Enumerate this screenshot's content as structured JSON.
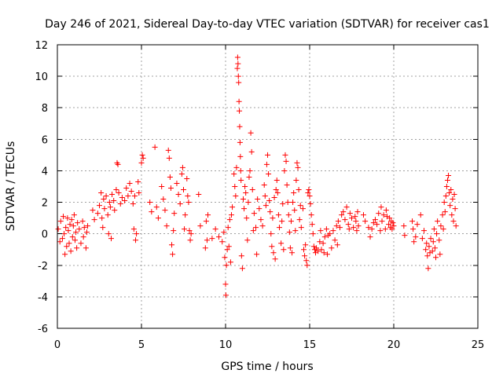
{
  "chart_data": {
    "type": "scatter",
    "title": "Day 246 of 2021, Sidereal Day-to-day VTEC variation (SDTVAR) for receiver cas1",
    "xlabel": "GPS time / hours",
    "ylabel": "SDTVAR / TECUs",
    "xlim": [
      0,
      25
    ],
    "ylim": [
      -6,
      12
    ],
    "xticks": [
      0,
      5,
      10,
      15,
      20,
      25
    ],
    "yticks": [
      -6,
      -4,
      -2,
      0,
      2,
      4,
      6,
      8,
      10,
      12
    ],
    "xtick_labels": [
      "0",
      "5",
      "10",
      "15",
      "20",
      "25"
    ],
    "ytick_labels": [
      "-6",
      "-4",
      "-2",
      "0",
      "2",
      "4",
      "6",
      "8",
      "10",
      "12"
    ],
    "grid": true,
    "marker": "+",
    "marker_color": "#ff0000",
    "series": [
      {
        "name": "SDTVAR",
        "points": [
          [
            0.05,
            0.3
          ],
          [
            0.15,
            -0.5
          ],
          [
            0.2,
            0.8
          ],
          [
            0.3,
            -0.3
          ],
          [
            0.35,
            1.1
          ],
          [
            0.4,
            0.0
          ],
          [
            0.45,
            -1.3
          ],
          [
            0.5,
            0.4
          ],
          [
            0.55,
            -0.8
          ],
          [
            0.6,
            1.0
          ],
          [
            0.65,
            0.2
          ],
          [
            0.7,
            -0.6
          ],
          [
            0.75,
            0.6
          ],
          [
            0.8,
            -1.1
          ],
          [
            0.85,
            0.9
          ],
          [
            0.9,
            -0.2
          ],
          [
            0.95,
            0.5
          ],
          [
            1.0,
            1.2
          ],
          [
            1.05,
            -0.4
          ],
          [
            1.1,
            0.1
          ],
          [
            1.15,
            -0.9
          ],
          [
            1.2,
            0.7
          ],
          [
            1.3,
            0.3
          ],
          [
            1.4,
            -0.6
          ],
          [
            1.5,
            0.8
          ],
          [
            1.55,
            -0.2
          ],
          [
            1.6,
            0.4
          ],
          [
            1.7,
            -0.9
          ],
          [
            1.75,
            0.1
          ],
          [
            1.8,
            0.5
          ],
          [
            2.1,
            1.5
          ],
          [
            2.2,
            0.9
          ],
          [
            2.4,
            1.3
          ],
          [
            2.5,
            1.8
          ],
          [
            2.6,
            2.6
          ],
          [
            2.65,
            1.0
          ],
          [
            2.7,
            0.4
          ],
          [
            2.75,
            2.2
          ],
          [
            2.8,
            1.6
          ],
          [
            2.9,
            2.4
          ],
          [
            3.0,
            1.2
          ],
          [
            3.05,
            0.0
          ],
          [
            3.1,
            2.0
          ],
          [
            3.15,
            1.7
          ],
          [
            3.2,
            -0.3
          ],
          [
            3.25,
            2.5
          ],
          [
            3.35,
            2.1
          ],
          [
            3.4,
            1.5
          ],
          [
            3.5,
            2.8
          ],
          [
            3.55,
            4.5
          ],
          [
            3.6,
            4.4
          ],
          [
            3.65,
            2.6
          ],
          [
            3.75,
            1.9
          ],
          [
            3.85,
            2.3
          ],
          [
            4.0,
            2.1
          ],
          [
            4.1,
            2.9
          ],
          [
            4.2,
            2.4
          ],
          [
            4.3,
            3.2
          ],
          [
            4.4,
            2.7
          ],
          [
            4.5,
            1.9
          ],
          [
            4.55,
            0.3
          ],
          [
            4.6,
            2.4
          ],
          [
            4.65,
            -0.4
          ],
          [
            4.7,
            0.0
          ],
          [
            4.8,
            3.3
          ],
          [
            4.85,
            2.6
          ],
          [
            5.0,
            4.5
          ],
          [
            5.05,
            5.0
          ],
          [
            5.1,
            4.8
          ],
          [
            5.5,
            2.0
          ],
          [
            5.6,
            1.4
          ],
          [
            5.8,
            5.5
          ],
          [
            5.9,
            1.7
          ],
          [
            6.0,
            1.0
          ],
          [
            6.2,
            3.0
          ],
          [
            6.3,
            2.2
          ],
          [
            6.4,
            1.5
          ],
          [
            6.5,
            0.5
          ],
          [
            6.6,
            5.3
          ],
          [
            6.65,
            4.8
          ],
          [
            6.7,
            3.6
          ],
          [
            6.75,
            2.9
          ],
          [
            6.8,
            -0.7
          ],
          [
            6.85,
            -1.3
          ],
          [
            6.9,
            0.2
          ],
          [
            6.95,
            1.3
          ],
          [
            7.1,
            3.2
          ],
          [
            7.2,
            2.5
          ],
          [
            7.3,
            1.9
          ],
          [
            7.4,
            3.8
          ],
          [
            7.45,
            4.2
          ],
          [
            7.5,
            2.8
          ],
          [
            7.55,
            0.3
          ],
          [
            7.6,
            1.2
          ],
          [
            7.7,
            3.5
          ],
          [
            7.75,
            2.4
          ],
          [
            7.8,
            2.0
          ],
          [
            7.85,
            0.2
          ],
          [
            7.9,
            -0.4
          ],
          [
            7.95,
            0.0
          ],
          [
            8.4,
            2.5
          ],
          [
            8.5,
            0.5
          ],
          [
            8.8,
            -0.9
          ],
          [
            8.85,
            0.8
          ],
          [
            8.9,
            -0.4
          ],
          [
            8.95,
            1.2
          ],
          [
            9.2,
            -0.3
          ],
          [
            9.4,
            0.3
          ],
          [
            9.6,
            -0.2
          ],
          [
            9.8,
            -0.5
          ],
          [
            9.9,
            0.1
          ],
          [
            9.95,
            -1.5
          ],
          [
            10.0,
            -3.2
          ],
          [
            10.02,
            -3.9
          ],
          [
            10.05,
            -2.0
          ],
          [
            10.1,
            -1.0
          ],
          [
            10.15,
            0.4
          ],
          [
            10.2,
            -0.8
          ],
          [
            10.25,
            0.9
          ],
          [
            10.3,
            -1.8
          ],
          [
            10.35,
            1.2
          ],
          [
            10.4,
            1.7
          ],
          [
            10.5,
            3.8
          ],
          [
            10.55,
            3.0
          ],
          [
            10.6,
            2.4
          ],
          [
            10.65,
            4.2
          ],
          [
            10.7,
            10.5
          ],
          [
            10.72,
            11.2
          ],
          [
            10.74,
            10.8
          ],
          [
            10.76,
            10.0
          ],
          [
            10.78,
            9.6
          ],
          [
            10.8,
            8.4
          ],
          [
            10.82,
            7.8
          ],
          [
            10.84,
            6.8
          ],
          [
            10.86,
            5.8
          ],
          [
            10.88,
            4.9
          ],
          [
            10.9,
            4.0
          ],
          [
            10.92,
            3.4
          ],
          [
            10.95,
            -1.4
          ],
          [
            11.0,
            -2.2
          ],
          [
            11.05,
            2.2
          ],
          [
            11.1,
            1.6
          ],
          [
            11.15,
            3.0
          ],
          [
            11.2,
            2.6
          ],
          [
            11.25,
            1.0
          ],
          [
            11.3,
            -0.4
          ],
          [
            11.35,
            2.0
          ],
          [
            11.4,
            3.6
          ],
          [
            11.45,
            4.0
          ],
          [
            11.5,
            6.4
          ],
          [
            11.55,
            5.2
          ],
          [
            11.6,
            2.8
          ],
          [
            11.65,
            0.2
          ],
          [
            11.7,
            1.3
          ],
          [
            11.8,
            0.4
          ],
          [
            11.85,
            -1.3
          ],
          [
            11.9,
            2.2
          ],
          [
            12.0,
            1.6
          ],
          [
            12.1,
            0.9
          ],
          [
            12.2,
            0.5
          ],
          [
            12.3,
            3.1
          ],
          [
            12.35,
            2.4
          ],
          [
            12.4,
            1.8
          ],
          [
            12.45,
            4.4
          ],
          [
            12.5,
            5.0
          ],
          [
            12.55,
            3.8
          ],
          [
            12.6,
            2.1
          ],
          [
            12.65,
            1.4
          ],
          [
            12.7,
            0.0
          ],
          [
            12.75,
            -0.8
          ],
          [
            12.8,
            1.0
          ],
          [
            12.85,
            -1.2
          ],
          [
            12.9,
            2.3
          ],
          [
            12.95,
            -1.6
          ],
          [
            13.0,
            2.8
          ],
          [
            13.05,
            3.4
          ],
          [
            13.1,
            2.6
          ],
          [
            13.15,
            1.2
          ],
          [
            13.2,
            0.4
          ],
          [
            13.3,
            -0.6
          ],
          [
            13.35,
            0.8
          ],
          [
            13.4,
            1.9
          ],
          [
            13.45,
            -1.0
          ],
          [
            13.5,
            4.0
          ],
          [
            13.55,
            5.0
          ],
          [
            13.6,
            4.6
          ],
          [
            13.65,
            3.1
          ],
          [
            13.7,
            2.0
          ],
          [
            13.75,
            1.2
          ],
          [
            13.8,
            0.1
          ],
          [
            13.85,
            -0.9
          ],
          [
            13.9,
            0.8
          ],
          [
            13.95,
            -1.2
          ],
          [
            14.0,
            2.0
          ],
          [
            14.05,
            2.6
          ],
          [
            14.1,
            1.5
          ],
          [
            14.15,
            0.2
          ],
          [
            14.2,
            3.4
          ],
          [
            14.25,
            4.5
          ],
          [
            14.3,
            4.2
          ],
          [
            14.35,
            2.8
          ],
          [
            14.4,
            0.9
          ],
          [
            14.45,
            1.8
          ],
          [
            14.5,
            0.4
          ],
          [
            14.6,
            1.6
          ],
          [
            14.65,
            -1.0
          ],
          [
            14.7,
            -1.4
          ],
          [
            14.75,
            -0.7
          ],
          [
            14.8,
            -1.7
          ],
          [
            14.85,
            -2.0
          ],
          [
            14.9,
            2.6
          ],
          [
            14.95,
            2.8
          ],
          [
            15.0,
            2.4
          ],
          [
            15.05,
            1.9
          ],
          [
            15.1,
            1.2
          ],
          [
            15.15,
            0.6
          ],
          [
            15.2,
            0.0
          ],
          [
            15.25,
            -0.8
          ],
          [
            15.3,
            -1.0
          ],
          [
            15.35,
            -1.2
          ],
          [
            15.4,
            -0.9
          ],
          [
            15.5,
            -1.1
          ],
          [
            15.6,
            -0.5
          ],
          [
            15.65,
            0.2
          ],
          [
            15.7,
            -1.0
          ],
          [
            15.8,
            -0.6
          ],
          [
            15.85,
            -1.2
          ],
          [
            15.9,
            -0.2
          ],
          [
            16.0,
            0.3
          ],
          [
            16.05,
            -1.3
          ],
          [
            16.1,
            -0.1
          ],
          [
            16.2,
            0.0
          ],
          [
            16.3,
            -0.9
          ],
          [
            16.4,
            0.2
          ],
          [
            16.5,
            -0.4
          ],
          [
            16.6,
            0.5
          ],
          [
            16.65,
            -0.7
          ],
          [
            16.7,
            0.8
          ],
          [
            16.8,
            0.4
          ],
          [
            16.9,
            1.2
          ],
          [
            17.0,
            1.4
          ],
          [
            17.1,
            0.9
          ],
          [
            17.2,
            1.7
          ],
          [
            17.3,
            0.6
          ],
          [
            17.35,
            0.3
          ],
          [
            17.4,
            1.3
          ],
          [
            17.5,
            1.0
          ],
          [
            17.6,
            0.4
          ],
          [
            17.7,
            1.1
          ],
          [
            17.75,
            0.8
          ],
          [
            17.8,
            0.2
          ],
          [
            17.85,
            1.4
          ],
          [
            17.9,
            0.5
          ],
          [
            18.2,
            1.2
          ],
          [
            18.3,
            0.8
          ],
          [
            18.5,
            0.4
          ],
          [
            18.6,
            -0.2
          ],
          [
            18.7,
            0.3
          ],
          [
            18.8,
            0.7
          ],
          [
            18.9,
            0.9
          ],
          [
            19.0,
            0.6
          ],
          [
            19.1,
            1.3
          ],
          [
            19.2,
            0.2
          ],
          [
            19.25,
            1.7
          ],
          [
            19.3,
            0.8
          ],
          [
            19.4,
            1.2
          ],
          [
            19.5,
            0.3
          ],
          [
            19.55,
            1.5
          ],
          [
            19.6,
            1.1
          ],
          [
            19.7,
            0.6
          ],
          [
            19.75,
            1.0
          ],
          [
            19.8,
            0.4
          ],
          [
            19.85,
            0.8
          ],
          [
            19.9,
            0.3
          ],
          [
            19.95,
            0.7
          ],
          [
            20.0,
            0.5
          ],
          [
            20.6,
            0.5
          ],
          [
            20.65,
            -0.1
          ],
          [
            21.1,
            0.8
          ],
          [
            21.15,
            0.3
          ],
          [
            21.2,
            -0.5
          ],
          [
            21.3,
            -0.2
          ],
          [
            21.4,
            0.6
          ],
          [
            21.6,
            1.2
          ],
          [
            21.7,
            -0.3
          ],
          [
            21.8,
            0.2
          ],
          [
            21.9,
            -1.0
          ],
          [
            21.95,
            -0.6
          ],
          [
            22.0,
            -1.4
          ],
          [
            22.05,
            -2.2
          ],
          [
            22.1,
            -0.8
          ],
          [
            22.15,
            -1.2
          ],
          [
            22.2,
            -0.3
          ],
          [
            22.3,
            -1.1
          ],
          [
            22.35,
            -0.5
          ],
          [
            22.4,
            0.3
          ],
          [
            22.45,
            -0.9
          ],
          [
            22.5,
            -1.5
          ],
          [
            22.55,
            0.0
          ],
          [
            22.6,
            0.8
          ],
          [
            22.7,
            -0.4
          ],
          [
            22.75,
            -1.3
          ],
          [
            22.8,
            0.5
          ],
          [
            22.9,
            1.2
          ],
          [
            22.95,
            0.3
          ],
          [
            23.0,
            2.0
          ],
          [
            23.05,
            1.4
          ],
          [
            23.1,
            2.4
          ],
          [
            23.15,
            3.0
          ],
          [
            23.2,
            3.4
          ],
          [
            23.25,
            3.7
          ],
          [
            23.3,
            2.6
          ],
          [
            23.35,
            1.8
          ],
          [
            23.4,
            2.8
          ],
          [
            23.45,
            1.2
          ],
          [
            23.5,
            2.2
          ],
          [
            23.55,
            0.8
          ],
          [
            23.6,
            2.5
          ],
          [
            23.65,
            1.6
          ],
          [
            23.7,
            0.5
          ]
        ]
      }
    ]
  }
}
